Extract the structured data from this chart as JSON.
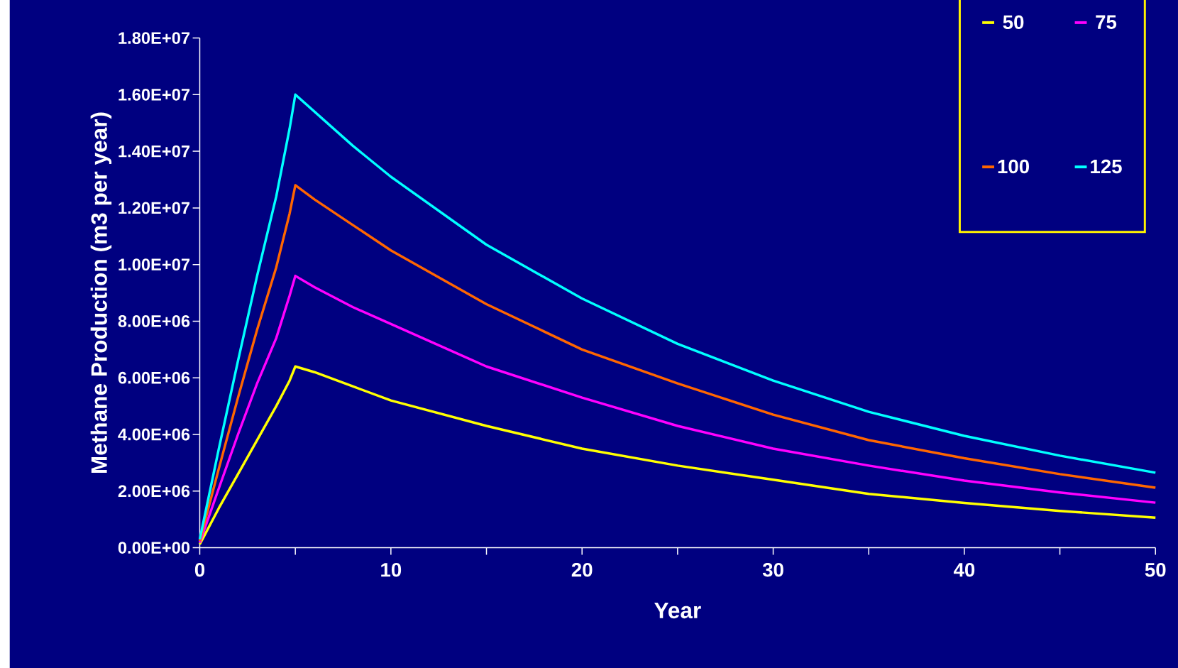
{
  "chart_data": {
    "type": "line",
    "xlabel": "Year",
    "ylabel": "Methane Production (m3 per year)",
    "x": [
      0,
      1,
      2,
      3,
      4,
      4.7,
      5,
      6,
      8,
      10,
      15,
      20,
      25,
      30,
      35,
      40,
      45,
      50
    ],
    "series": [
      {
        "name": "50",
        "color": "#ffff00",
        "values": [
          120000,
          1400000,
          2600000,
          3800000,
          5000000,
          5900000,
          6400000,
          6200000,
          5700000,
          5200000,
          4300000,
          3500000,
          2900000,
          2400000,
          1900000,
          1580000,
          1300000,
          1060000
        ]
      },
      {
        "name": "75",
        "color": "#ff00ff",
        "values": [
          180000,
          2100000,
          4000000,
          5800000,
          7400000,
          8900000,
          9600000,
          9200000,
          8500000,
          7900000,
          6400000,
          5300000,
          4300000,
          3500000,
          2900000,
          2370000,
          1950000,
          1590000
        ]
      },
      {
        "name": "100",
        "color": "#ff6600",
        "values": [
          240000,
          2800000,
          5300000,
          7700000,
          9900000,
          11800000,
          12800000,
          12300000,
          11400000,
          10500000,
          8600000,
          7000000,
          5800000,
          4700000,
          3800000,
          3160000,
          2600000,
          2120000
        ]
      },
      {
        "name": "125",
        "color": "#00ffff",
        "values": [
          300000,
          3500000,
          6600000,
          9600000,
          12400000,
          14800000,
          16000000,
          15400000,
          14200000,
          13100000,
          10700000,
          8800000,
          7200000,
          5900000,
          4800000,
          3950000,
          3250000,
          2650000
        ]
      }
    ],
    "xlim": [
      0,
      50
    ],
    "ylim": [
      0,
      18000000
    ],
    "xticks": [
      0,
      {
        "value": 5,
        "label": null
      },
      10,
      {
        "value": 15,
        "label": null
      },
      20,
      {
        "value": 25,
        "label": null
      },
      30,
      {
        "value": 35,
        "label": null
      },
      40,
      {
        "value": 45,
        "label": null
      },
      50
    ],
    "yticks": [
      {
        "value": 0,
        "label": "0.00E+00"
      },
      {
        "value": 2000000,
        "label": "2.00E+06"
      },
      {
        "value": 4000000,
        "label": "4.00E+06"
      },
      {
        "value": 6000000,
        "label": "6.00E+06"
      },
      {
        "value": 8000000,
        "label": "8.00E+06"
      },
      {
        "value": 10000000,
        "label": "1.00E+07"
      },
      {
        "value": 12000000,
        "label": "1.20E+07"
      },
      {
        "value": 14000000,
        "label": "1.40E+07"
      },
      {
        "value": 16000000,
        "label": "1.60E+07"
      },
      {
        "value": 18000000,
        "label": "1.80E+07"
      }
    ],
    "legend": "top right"
  }
}
